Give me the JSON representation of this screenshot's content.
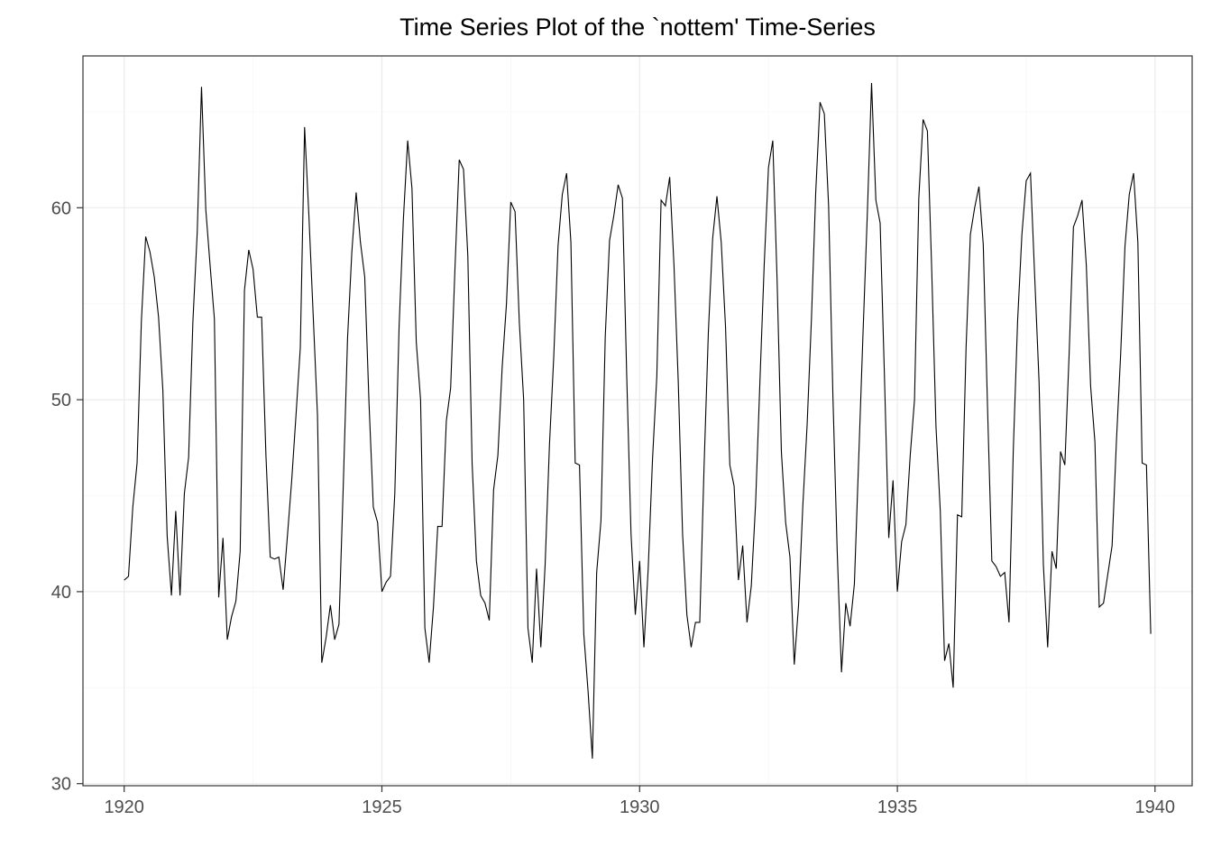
{
  "chart_data": {
    "type": "line",
    "title": "Time Series Plot of the `nottem' Time-Series",
    "xlabel": "",
    "ylabel": "",
    "x_start": 1920,
    "frequency": 12,
    "xlim": [
      1919.2,
      1940.72
    ],
    "ylim": [
      29.89,
      67.91
    ],
    "x_ticks": [
      1920,
      1925,
      1930,
      1935,
      1940
    ],
    "x_tick_labels": [
      "1920",
      "1925",
      "1930",
      "1935",
      "1940"
    ],
    "x_minor": [
      1922.5,
      1927.5,
      1932.5,
      1937.5
    ],
    "y_ticks": [
      30,
      40,
      50,
      60
    ],
    "y_tick_labels": [
      "30",
      "40",
      "50",
      "60"
    ],
    "y_minor": [
      35,
      45,
      55,
      65
    ],
    "grid": true,
    "legend": "none",
    "colors": {
      "line": "#000000",
      "panel_bg": "#ffffff",
      "panel_border": "#333333",
      "grid_major": "#ebebeb",
      "grid_minor": "#f7f7f7",
      "axis_text": "#4d4d4d",
      "tick": "#333333",
      "title": "#000000"
    },
    "series": [
      {
        "name": "nottem",
        "start_label": "Jan 1920",
        "end_label": "Dec 1939",
        "values": [
          40.6,
          40.8,
          44.4,
          46.7,
          54.1,
          58.5,
          57.7,
          56.4,
          54.3,
          50.5,
          42.9,
          39.8,
          44.2,
          39.8,
          45.1,
          47.0,
          54.1,
          58.7,
          66.3,
          59.9,
          57.0,
          54.2,
          39.7,
          42.8,
          37.5,
          38.7,
          39.5,
          42.1,
          55.7,
          57.8,
          56.8,
          54.3,
          54.3,
          47.1,
          41.8,
          41.7,
          41.8,
          40.1,
          42.9,
          45.8,
          49.2,
          52.7,
          64.2,
          59.6,
          54.4,
          49.2,
          36.3,
          37.6,
          39.3,
          37.5,
          38.3,
          45.5,
          53.2,
          57.7,
          60.8,
          58.2,
          56.4,
          49.8,
          44.4,
          43.6,
          40.0,
          40.5,
          40.8,
          45.1,
          53.8,
          59.4,
          63.5,
          61.0,
          53.0,
          50.0,
          38.1,
          36.3,
          39.2,
          43.4,
          43.4,
          48.9,
          50.6,
          56.8,
          62.5,
          62.0,
          57.5,
          46.7,
          41.6,
          39.8,
          39.4,
          38.5,
          45.3,
          47.1,
          51.7,
          55.0,
          60.3,
          59.8,
          54.0,
          50.0,
          38.1,
          36.3,
          41.2,
          37.1,
          41.4,
          47.6,
          52.2,
          58.0,
          60.7,
          61.8,
          58.2,
          46.7,
          46.6,
          37.8,
          34.8,
          31.3,
          41.0,
          43.7,
          53.3,
          58.3,
          59.6,
          61.2,
          60.5,
          51.2,
          43.0,
          38.8,
          41.6,
          37.1,
          41.2,
          46.9,
          51.2,
          60.4,
          60.1,
          61.6,
          57.0,
          50.9,
          43.0,
          38.8,
          37.1,
          38.4,
          38.4,
          46.5,
          53.5,
          58.4,
          60.6,
          58.2,
          53.8,
          46.6,
          45.5,
          40.6,
          42.4,
          38.4,
          40.3,
          44.6,
          50.9,
          57.0,
          62.1,
          63.5,
          56.3,
          47.3,
          43.6,
          41.8,
          36.2,
          39.3,
          44.5,
          48.7,
          54.2,
          60.8,
          65.5,
          64.9,
          60.1,
          50.2,
          42.1,
          35.8,
          39.4,
          38.2,
          40.4,
          46.9,
          53.4,
          59.6,
          66.5,
          60.4,
          59.2,
          51.2,
          42.8,
          45.8,
          40.0,
          42.6,
          43.5,
          47.1,
          50.0,
          60.5,
          64.6,
          64.0,
          56.8,
          48.6,
          44.2,
          36.4,
          37.3,
          35.0,
          44.0,
          43.9,
          52.7,
          58.6,
          60.0,
          61.1,
          58.1,
          49.6,
          41.6,
          41.3,
          40.8,
          41.0,
          38.4,
          47.4,
          54.1,
          58.6,
          61.4,
          61.8,
          56.3,
          50.9,
          41.4,
          37.1,
          42.1,
          41.2,
          47.3,
          46.6,
          52.4,
          59.0,
          59.6,
          60.4,
          57.0,
          50.7,
          47.8,
          39.2,
          39.4,
          40.9,
          42.4,
          47.8,
          52.4,
          58.0,
          60.7,
          61.8,
          58.2,
          46.7,
          46.6,
          37.8
        ]
      }
    ]
  }
}
